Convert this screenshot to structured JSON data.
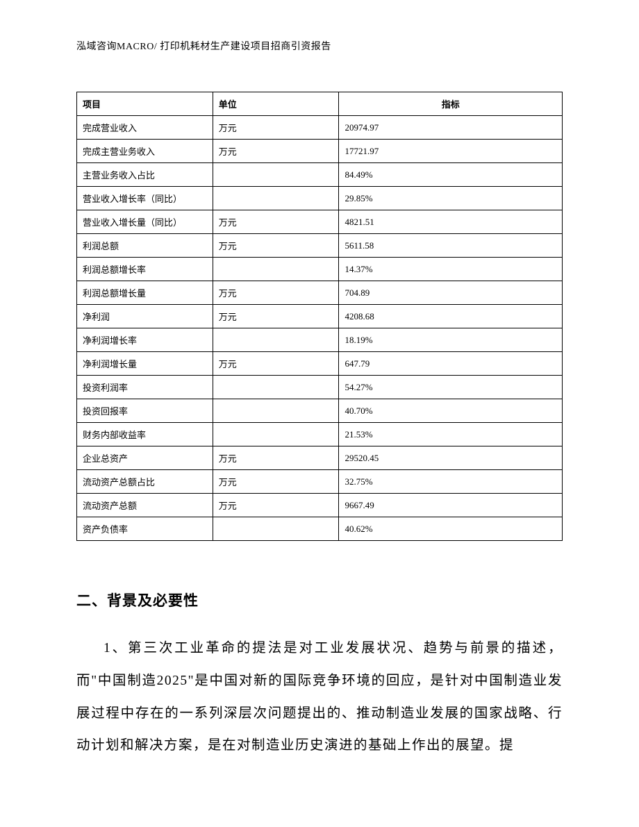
{
  "header": {
    "text": "泓域咨询MACRO/ 打印机耗材生产建设项目招商引资报告"
  },
  "table": {
    "columns": [
      "项目",
      "单位",
      "指标"
    ],
    "rows": [
      {
        "item": "完成营业收入",
        "unit": "万元",
        "value": "20974.97"
      },
      {
        "item": "完成主营业务收入",
        "unit": "万元",
        "value": "17721.97"
      },
      {
        "item": "主营业务收入占比",
        "unit": "",
        "value": "84.49%"
      },
      {
        "item": "营业收入增长率（同比）",
        "unit": "",
        "value": "29.85%"
      },
      {
        "item": "营业收入增长量（同比）",
        "unit": "万元",
        "value": "4821.51"
      },
      {
        "item": "利润总额",
        "unit": "万元",
        "value": "5611.58"
      },
      {
        "item": "利润总额增长率",
        "unit": "",
        "value": "14.37%"
      },
      {
        "item": "利润总额增长量",
        "unit": "万元",
        "value": "704.89"
      },
      {
        "item": "净利润",
        "unit": "万元",
        "value": "4208.68"
      },
      {
        "item": "净利润增长率",
        "unit": "",
        "value": "18.19%"
      },
      {
        "item": "净利润增长量",
        "unit": "万元",
        "value": "647.79"
      },
      {
        "item": "投资利润率",
        "unit": "",
        "value": "54.27%"
      },
      {
        "item": "投资回报率",
        "unit": "",
        "value": "40.70%"
      },
      {
        "item": "财务内部收益率",
        "unit": "",
        "value": "21.53%"
      },
      {
        "item": "企业总资产",
        "unit": "万元",
        "value": "29520.45"
      },
      {
        "item": "流动资产总额占比",
        "unit": "万元",
        "value": "32.75%"
      },
      {
        "item": "流动资产总额",
        "unit": "万元",
        "value": "9667.49"
      },
      {
        "item": "资产负债率",
        "unit": "",
        "value": "40.62%"
      }
    ]
  },
  "section": {
    "heading": "二、背景及必要性",
    "paragraph": "1、第三次工业革命的提法是对工业发展状况、趋势与前景的描述，而\"中国制造2025\"是中国对新的国际竞争环境的回应，是针对中国制造业发展过程中存在的一系列深层次问题提出的、推动制造业发展的国家战略、行动计划和解决方案，是在对制造业历史演进的基础上作出的展望。提"
  }
}
